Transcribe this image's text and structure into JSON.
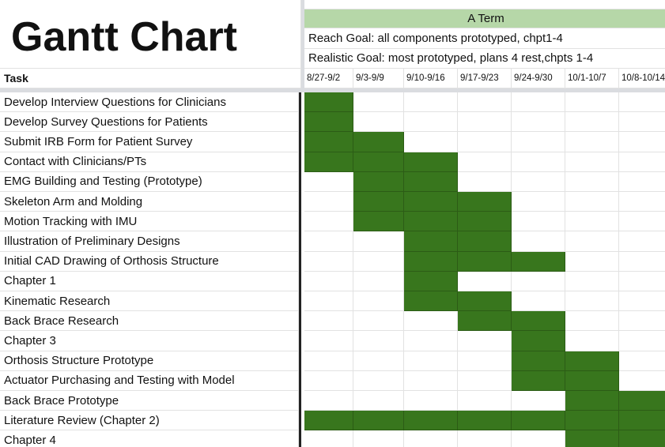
{
  "title": "Gantt Chart",
  "term": "A Term",
  "goals": [
    "Reach Goal: all components prototyped, chpt1-4",
    "Realistic Goal: most prototyped, plans 4 rest,chpts 1-4"
  ],
  "task_header": "Task",
  "weeks": [
    "8/27-9/2",
    "9/3-9/9",
    "9/10-9/16",
    "9/17-9/23",
    "9/24-9/30",
    "10/1-10/7",
    "10/8-10/14"
  ],
  "tasks": [
    {
      "name": "Develop Interview Questions for Clinicians",
      "weeks": [
        "8/27-9/2"
      ]
    },
    {
      "name": "Develop Survey Questions for Patients",
      "weeks": [
        "8/27-9/2"
      ]
    },
    {
      "name": "Submit IRB Form for Patient Survey",
      "weeks": [
        "8/27-9/2",
        "9/3-9/9"
      ]
    },
    {
      "name": "Contact with Clinicians/PTs",
      "weeks": [
        "8/27-9/2",
        "9/3-9/9",
        "9/10-9/16"
      ]
    },
    {
      "name": "EMG Building and Testing (Prototype)",
      "weeks": [
        "9/3-9/9",
        "9/10-9/16"
      ]
    },
    {
      "name": "Skeleton Arm and Molding",
      "weeks": [
        "9/3-9/9",
        "9/10-9/16",
        "9/17-9/23"
      ]
    },
    {
      "name": "Motion Tracking with IMU",
      "weeks": [
        "9/3-9/9",
        "9/10-9/16",
        "9/17-9/23"
      ]
    },
    {
      "name": "Illustration of Preliminary Designs",
      "weeks": [
        "9/10-9/16",
        "9/17-9/23"
      ]
    },
    {
      "name": "Initial CAD Drawing of Orthosis Structure",
      "weeks": [
        "9/10-9/16",
        "9/17-9/23",
        "9/24-9/30"
      ]
    },
    {
      "name": "Chapter 1",
      "weeks": [
        "9/10-9/16"
      ]
    },
    {
      "name": "Kinematic Research",
      "weeks": [
        "9/10-9/16",
        "9/17-9/23"
      ]
    },
    {
      "name": "Back Brace Research",
      "weeks": [
        "9/17-9/23",
        "9/24-9/30"
      ]
    },
    {
      "name": "Chapter 3",
      "weeks": [
        "9/24-9/30"
      ]
    },
    {
      "name": "Orthosis Structure Prototype",
      "weeks": [
        "9/24-9/30",
        "10/1-10/7"
      ]
    },
    {
      "name": "Actuator Purchasing and Testing with Model",
      "weeks": [
        "9/24-9/30",
        "10/1-10/7"
      ]
    },
    {
      "name": "Back Brace Prototype",
      "weeks": [
        "10/1-10/7",
        "10/8-10/14"
      ]
    },
    {
      "name": "Literature Review (Chapter 2)",
      "weeks": [
        "8/27-9/2",
        "9/3-9/9",
        "9/10-9/16",
        "9/17-9/23",
        "9/24-9/30",
        "10/1-10/7",
        "10/8-10/14"
      ]
    },
    {
      "name": "Chapter 4",
      "weeks": [
        "10/1-10/7",
        "10/8-10/14"
      ]
    }
  ]
}
